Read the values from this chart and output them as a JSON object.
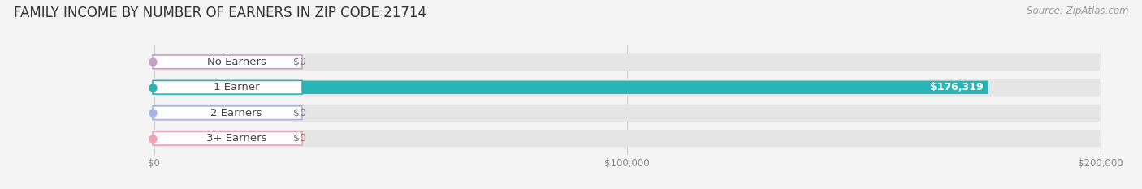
{
  "title": "FAMILY INCOME BY NUMBER OF EARNERS IN ZIP CODE 21714",
  "source": "Source: ZipAtlas.com",
  "categories": [
    "No Earners",
    "1 Earner",
    "2 Earners",
    "3+ Earners"
  ],
  "values": [
    0,
    176319,
    0,
    0
  ],
  "bar_colors": [
    "#c9a0c8",
    "#29b5b5",
    "#a8b4e8",
    "#f4a0b5"
  ],
  "background_color": "#f4f4f4",
  "bar_background_color": "#e5e5e5",
  "xlim": [
    0,
    200000
  ],
  "xticks": [
    0,
    100000,
    200000
  ],
  "xtick_labels": [
    "$0",
    "$100,000",
    "$200,000"
  ],
  "value_labels": [
    "$0",
    "$176,319",
    "$0",
    "$0"
  ],
  "title_fontsize": 12,
  "source_fontsize": 8.5,
  "label_fontsize": 9.5,
  "value_fontsize": 9
}
